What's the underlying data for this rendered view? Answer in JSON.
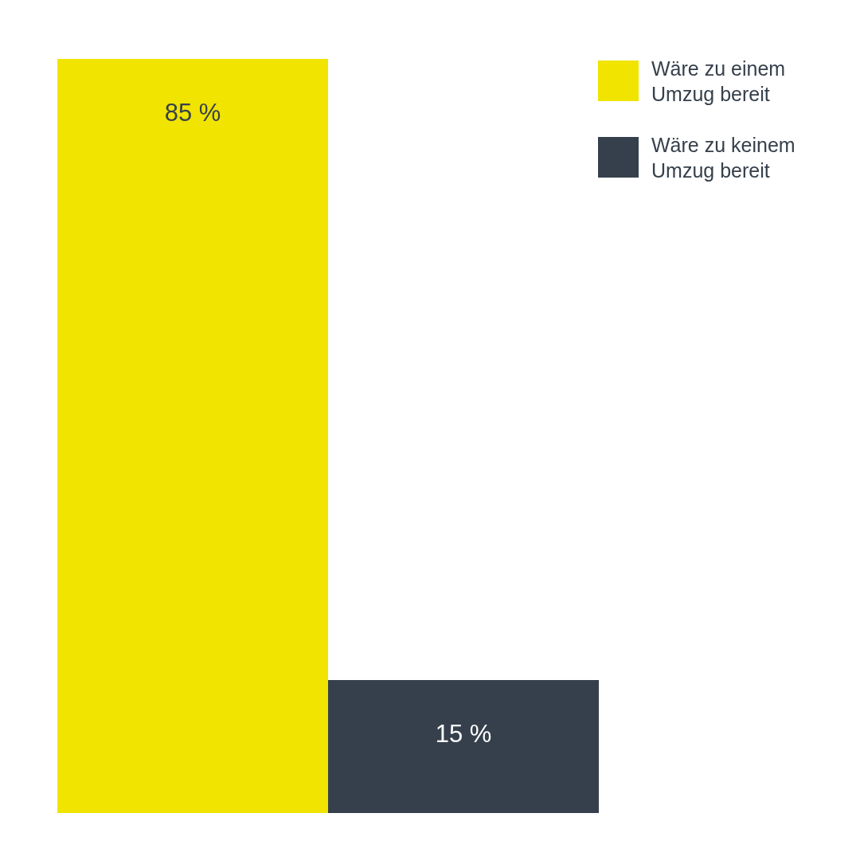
{
  "chart_data": {
    "type": "bar",
    "categories": [
      null
    ],
    "series": [
      {
        "name": "Wäre zu einem Umzug bereit",
        "color": "#f0e400",
        "values": [
          85
        ],
        "value_labels": [
          "85 %"
        ]
      },
      {
        "name": "Wäre zu keinem Umzug bereit",
        "color": "#36404c",
        "values": [
          15
        ],
        "value_labels": [
          "15 %"
        ]
      }
    ],
    "legend": "top right",
    "grid": false,
    "tick_labels": false
  }
}
